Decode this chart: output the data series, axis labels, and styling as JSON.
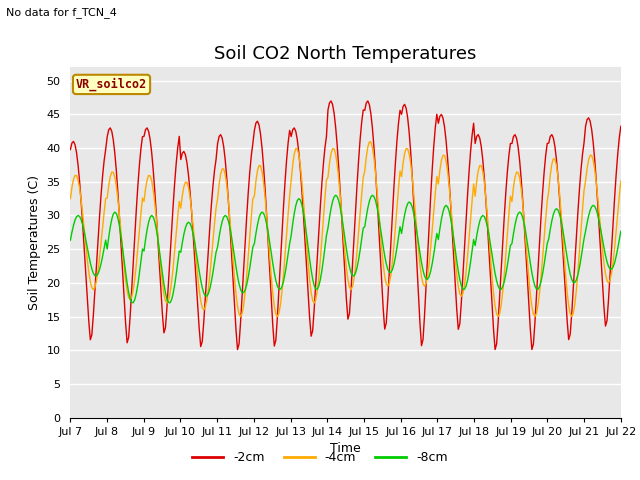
{
  "title": "Soil CO2 North Temperatures",
  "subtitle": "No data for f_TCN_4",
  "xlabel": "Time",
  "ylabel": "Soil Temperatures (C)",
  "legend_label": "VR_soilco2",
  "ylim": [
    0,
    52
  ],
  "yticks": [
    0,
    5,
    10,
    15,
    20,
    25,
    30,
    35,
    40,
    45,
    50
  ],
  "x_labels": [
    "Jul 7",
    "Jul 8",
    "Jul 9",
    "Jul 10",
    "Jul 11",
    "Jul 12",
    "Jul 13",
    "Jul 14",
    "Jul 15",
    "Jul 16",
    "Jul 17",
    "Jul 18",
    "Jul 19",
    "Jul 20",
    "Jul 21",
    "Jul 22"
  ],
  "color_2cm": "#dd0000",
  "color_4cm": "#ffaa00",
  "color_8cm": "#00cc00",
  "bg_color": "#e8e8e8",
  "title_fontsize": 13,
  "axis_label_fontsize": 9,
  "tick_fontsize": 8,
  "n_days": 15,
  "min_2cm": [
    11,
    10.5,
    12,
    10,
    9.5,
    10,
    11.5,
    14,
    12.5,
    10,
    12.5,
    9.5,
    9.5,
    11,
    13
  ],
  "max_2cm": [
    41,
    43,
    43,
    39.5,
    42,
    44,
    43,
    47,
    47,
    46.5,
    45,
    42,
    42,
    42,
    44.5
  ],
  "min_4cm": [
    19,
    17.5,
    17,
    16,
    15,
    15,
    17,
    19,
    19.5,
    19.5,
    18,
    15,
    15,
    15,
    20
  ],
  "max_4cm": [
    36,
    36.5,
    36,
    35,
    37,
    37.5,
    40,
    40,
    41,
    40,
    39,
    37.5,
    36.5,
    38.5,
    39
  ],
  "min_8cm": [
    21,
    17,
    17,
    18,
    18.5,
    19,
    19,
    21,
    21.5,
    20.5,
    19,
    19,
    19,
    20,
    22
  ],
  "max_8cm": [
    30,
    30.5,
    30,
    29,
    30,
    30.5,
    32.5,
    33,
    33,
    32,
    31.5,
    30,
    30.5,
    31,
    31.5
  ],
  "peak_phase_2cm": 0.58,
  "peak_phase_4cm": 0.65,
  "peak_phase_8cm": 0.72
}
